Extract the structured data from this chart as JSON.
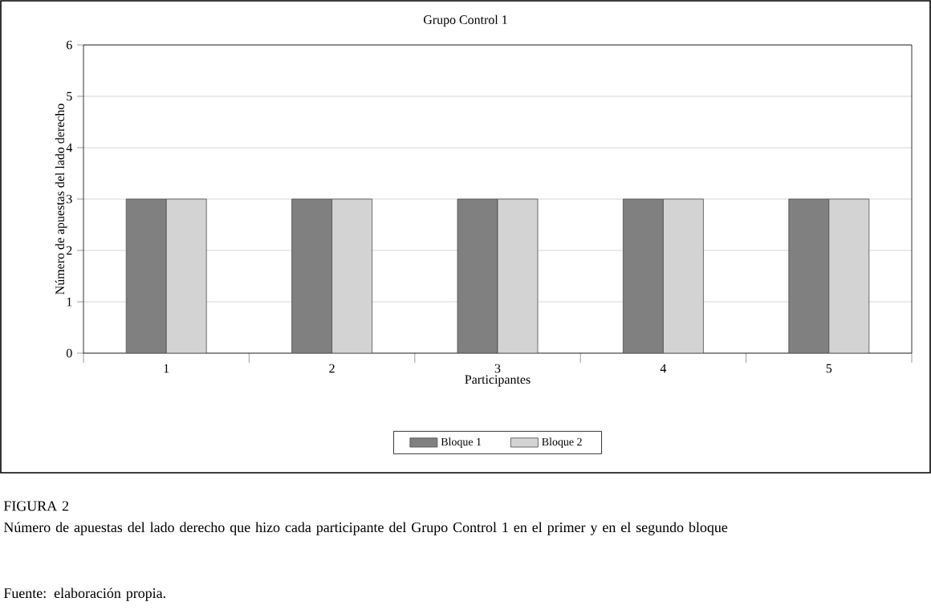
{
  "chart_data": {
    "type": "bar",
    "title": "Grupo Control 1",
    "xlabel": "Participantes",
    "ylabel": "Número de apuestas del lado derecho",
    "categories": [
      "1",
      "2",
      "3",
      "4",
      "5"
    ],
    "series": [
      {
        "name": "Bloque 1",
        "color": "#808080",
        "values": [
          3,
          3,
          3,
          3,
          3
        ]
      },
      {
        "name": "Bloque 2",
        "color": "#d3d3d3",
        "values": [
          3,
          3,
          3,
          3,
          3
        ]
      }
    ],
    "ylim": [
      0,
      6
    ],
    "yticks": [
      0,
      1,
      2,
      3,
      4,
      5,
      6
    ],
    "grid": "y",
    "legend": "bottom",
    "annotations": [
      "FIGURA 2",
      "Número de apuestas del lado derecho que hizo cada participante del Grupo Control 1 en el primer y en el segundo bloque",
      "Fuente: elaboración propia."
    ]
  }
}
